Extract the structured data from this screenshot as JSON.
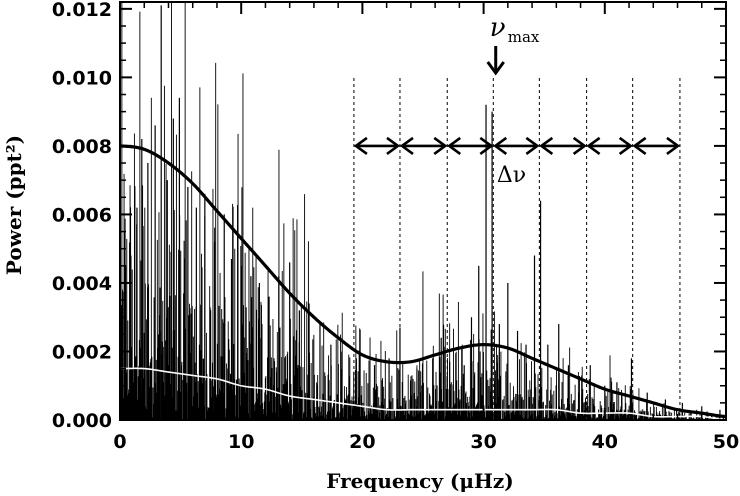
{
  "chart_data": {
    "type": "line",
    "title": "",
    "xlabel": "Frequency (μHz)",
    "ylabel": "Power (ppt²)",
    "xlim": [
      0,
      50
    ],
    "ylim": [
      0,
      0.0122
    ],
    "x_ticks": [
      0,
      10,
      20,
      30,
      40,
      50
    ],
    "x_tick_labels": [
      "0",
      "10",
      "20",
      "30",
      "40",
      "50"
    ],
    "y_ticks": [
      0.0,
      0.002,
      0.004,
      0.006,
      0.008,
      0.01,
      0.012
    ],
    "y_tick_labels": [
      "0.000",
      "0.002",
      "0.004",
      "0.006",
      "0.008",
      "0.010",
      "0.012"
    ],
    "grid": false,
    "series": [
      {
        "style": "thin black spectrum",
        "color": "#000000",
        "peaks": [
          {
            "x": 0.4,
            "y": 0.0055
          },
          {
            "x": 0.9,
            "y": 0.0048
          },
          {
            "x": 1.4,
            "y": 0.0062
          },
          {
            "x": 1.8,
            "y": 0.0082
          },
          {
            "x": 2.3,
            "y": 0.0075
          },
          {
            "x": 2.9,
            "y": 0.0086
          },
          {
            "x": 3.4,
            "y": 0.0121
          },
          {
            "x": 3.9,
            "y": 0.007
          },
          {
            "x": 4.4,
            "y": 0.0088
          },
          {
            "x": 4.9,
            "y": 0.0094
          },
          {
            "x": 5.6,
            "y": 0.0068
          },
          {
            "x": 6.3,
            "y": 0.0062
          },
          {
            "x": 7.0,
            "y": 0.0066
          },
          {
            "x": 7.8,
            "y": 0.0052
          },
          {
            "x": 8.6,
            "y": 0.006
          },
          {
            "x": 9.2,
            "y": 0.0047
          },
          {
            "x": 10.0,
            "y": 0.0045
          },
          {
            "x": 10.8,
            "y": 0.0042
          },
          {
            "x": 11.5,
            "y": 0.004
          },
          {
            "x": 12.3,
            "y": 0.0036
          },
          {
            "x": 13.1,
            "y": 0.0042
          },
          {
            "x": 14.0,
            "y": 0.0046
          },
          {
            "x": 14.8,
            "y": 0.0032
          },
          {
            "x": 15.6,
            "y": 0.0034
          },
          {
            "x": 16.5,
            "y": 0.0028
          },
          {
            "x": 17.4,
            "y": 0.0022
          },
          {
            "x": 18.3,
            "y": 0.002
          },
          {
            "x": 19.5,
            "y": 0.0018
          },
          {
            "x": 21.0,
            "y": 0.0016
          },
          {
            "x": 22.2,
            "y": 0.0018
          },
          {
            "x": 23.1,
            "y": 0.0027
          },
          {
            "x": 24.5,
            "y": 0.0015
          },
          {
            "x": 25.8,
            "y": 0.0018
          },
          {
            "x": 26.5,
            "y": 0.0024
          },
          {
            "x": 27.2,
            "y": 0.0017
          },
          {
            "x": 28.4,
            "y": 0.0016
          },
          {
            "x": 29.0,
            "y": 0.003
          },
          {
            "x": 29.6,
            "y": 0.0045
          },
          {
            "x": 30.2,
            "y": 0.0092
          },
          {
            "x": 30.7,
            "y": 0.009
          },
          {
            "x": 31.3,
            "y": 0.0028
          },
          {
            "x": 32.0,
            "y": 0.004
          },
          {
            "x": 32.8,
            "y": 0.0026
          },
          {
            "x": 33.5,
            "y": 0.0022
          },
          {
            "x": 34.2,
            "y": 0.0048
          },
          {
            "x": 34.7,
            "y": 0.0064
          },
          {
            "x": 35.3,
            "y": 0.0022
          },
          {
            "x": 36.2,
            "y": 0.0028
          },
          {
            "x": 37.0,
            "y": 0.0016
          },
          {
            "x": 38.1,
            "y": 0.0013
          },
          {
            "x": 38.8,
            "y": 0.0016
          },
          {
            "x": 40.0,
            "y": 0.001
          },
          {
            "x": 41.0,
            "y": 0.0011
          },
          {
            "x": 42.2,
            "y": 0.0018
          },
          {
            "x": 43.5,
            "y": 0.0008
          },
          {
            "x": 45.0,
            "y": 0.0006
          },
          {
            "x": 46.4,
            "y": 0.0005
          },
          {
            "x": 48.0,
            "y": 0.0004
          },
          {
            "x": 49.5,
            "y": 0.0003
          }
        ]
      },
      {
        "style": "thick black smoothed",
        "color": "#000000",
        "x": [
          0,
          2,
          4,
          6,
          8,
          10,
          12,
          14,
          16,
          18,
          20,
          22,
          24,
          26,
          28,
          30,
          32,
          34,
          36,
          38,
          40,
          42,
          44,
          46,
          48,
          50
        ],
        "values": [
          0.008,
          0.0079,
          0.0075,
          0.0069,
          0.0061,
          0.0053,
          0.0045,
          0.0037,
          0.003,
          0.0024,
          0.0019,
          0.0017,
          0.0017,
          0.0019,
          0.0021,
          0.0022,
          0.0021,
          0.0018,
          0.0015,
          0.0012,
          0.0009,
          0.0007,
          0.0005,
          0.0003,
          0.0002,
          0.0001
        ]
      },
      {
        "style": "thin white smoothed",
        "color": "#ffffff",
        "x": [
          0,
          2,
          4,
          6,
          8,
          10,
          12,
          14,
          16,
          18,
          20,
          22,
          24,
          26,
          28,
          30,
          32,
          34,
          36,
          38,
          40,
          42,
          44,
          46,
          48,
          50
        ],
        "values": [
          0.0015,
          0.0015,
          0.0014,
          0.0013,
          0.0012,
          0.001,
          0.0009,
          0.0007,
          0.0006,
          0.0005,
          0.0004,
          0.0003,
          0.0003,
          0.0003,
          0.0003,
          0.0003,
          0.0003,
          0.0003,
          0.0003,
          0.0002,
          0.0002,
          0.0002,
          0.0001,
          0.0001,
          0.0001,
          0.0
        ]
      }
    ],
    "annotations": {
      "numax": {
        "symbol": "ν",
        "subscript": "max",
        "x": 31.0
      },
      "delta_nu": {
        "label": "Δν"
      },
      "dotted_lines_x": [
        19.3,
        23.1,
        27.0,
        30.8,
        34.6,
        38.5,
        42.3,
        46.2
      ],
      "arrow_level": 0.008
    }
  }
}
